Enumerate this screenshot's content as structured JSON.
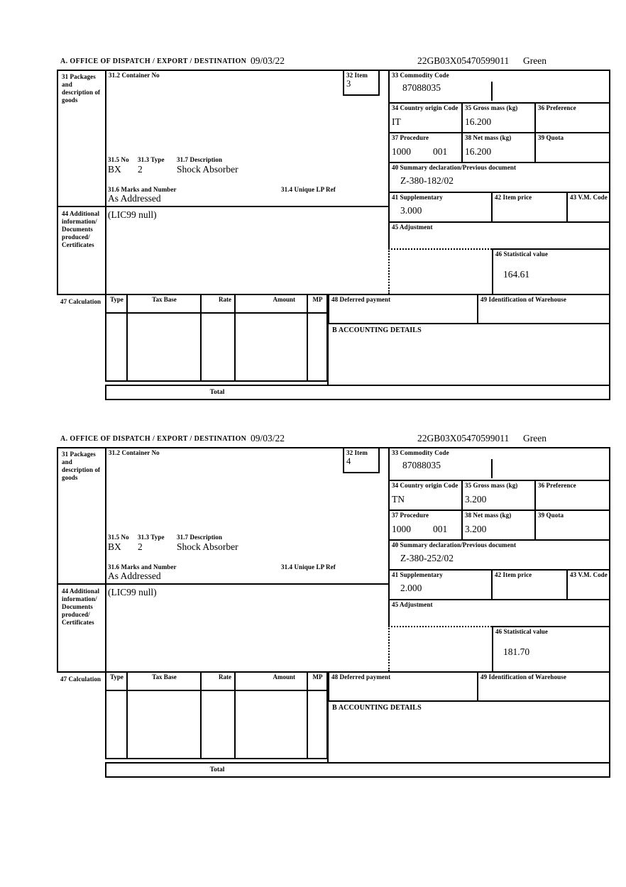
{
  "labels": {
    "office": "A.  OFFICE OF DISPATCH / EXPORT / DESTINATION",
    "box31": "31 Packages and description of goods",
    "box31_2": "31.2 Container No",
    "box32": "32 Item",
    "box33": "33 Commodity Code",
    "box34": "34 Country origin Code",
    "box35": "35 Gross mass (kg)",
    "box36": "36 Preference",
    "box37": "37 Procedure",
    "box38": "38 Net mass (kg)",
    "box39": "39 Quota",
    "box31_5": "31.5 No",
    "box31_3": "31.3 Type",
    "box31_7": "31.7 Description",
    "box31_6": "31.6 Marks and Number",
    "box31_4": "31.4 Unique LP Ref",
    "box40": "40 Summary declaration/Previous document",
    "box41": "41 Supplementary",
    "box42": "42 Item price",
    "box43": "43 V.M. Code",
    "box44": "44 Additional information/ Documents produced/ Certificates",
    "box45": "45 Adjustment",
    "box46": "46 Statistical value",
    "box47": "47 Calculation",
    "col_type": "Type",
    "col_tax_base": "Tax Base",
    "col_rate": "Rate",
    "col_amount": "Amount",
    "col_mp": "MP",
    "total": "Total",
    "box48": "48 Deferred payment",
    "box49": "49 Identification of Warehouse",
    "accounting": "B ACCOUNTING DETAILS"
  },
  "sections": [
    {
      "date": "09/03/22",
      "mrn": "22GB03X05470599011",
      "routing": "Green",
      "item": "3",
      "commodity_code": "87088035",
      "country_origin": "IT",
      "gross_mass": "16.200",
      "procedure": "1000",
      "procedure_code": "001",
      "net_mass": "16.200",
      "package_code": "BX",
      "package_type": "2",
      "goods_description": "Shock Absorber",
      "marks_and_number": "As Addressed",
      "previous_document": "Z-380-182/02",
      "supplementary": "3.000",
      "additional_info": "(LIC99 null)",
      "statistical_value": "164.61"
    },
    {
      "date": "09/03/22",
      "mrn": "22GB03X05470599011",
      "routing": "Green",
      "item": "4",
      "commodity_code": "87088035",
      "country_origin": "TN",
      "gross_mass": "3.200",
      "procedure": "1000",
      "procedure_code": "001",
      "net_mass": "3.200",
      "package_code": "BX",
      "package_type": "2",
      "goods_description": "Shock Absorber",
      "marks_and_number": "As Addressed",
      "previous_document": "Z-380-252/02",
      "supplementary": "2.000",
      "additional_info": "(LIC99 null)",
      "statistical_value": "181.70"
    }
  ]
}
